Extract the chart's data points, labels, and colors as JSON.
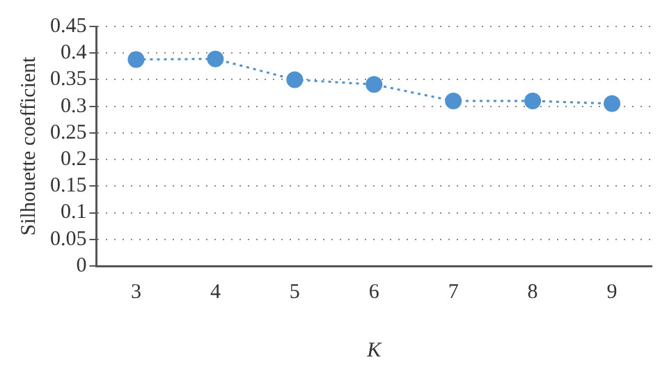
{
  "chart_data": {
    "type": "line",
    "xlabel": "K",
    "ylabel": "Silhouette coefficient",
    "categories": [
      "3",
      "4",
      "5",
      "6",
      "7",
      "8",
      "9"
    ],
    "series": [
      {
        "color": "#4f92d2",
        "values": [
          0.388,
          0.389,
          0.35,
          0.341,
          0.31,
          0.31,
          0.305
        ]
      }
    ],
    "ylim": [
      0,
      0.45
    ],
    "yticks": [
      0,
      0.05,
      0.1,
      0.15,
      0.2,
      0.25,
      0.3,
      0.35,
      0.4,
      0.45
    ],
    "grid": "y",
    "marker": "circle",
    "line_style": "dotted",
    "legend": false
  }
}
